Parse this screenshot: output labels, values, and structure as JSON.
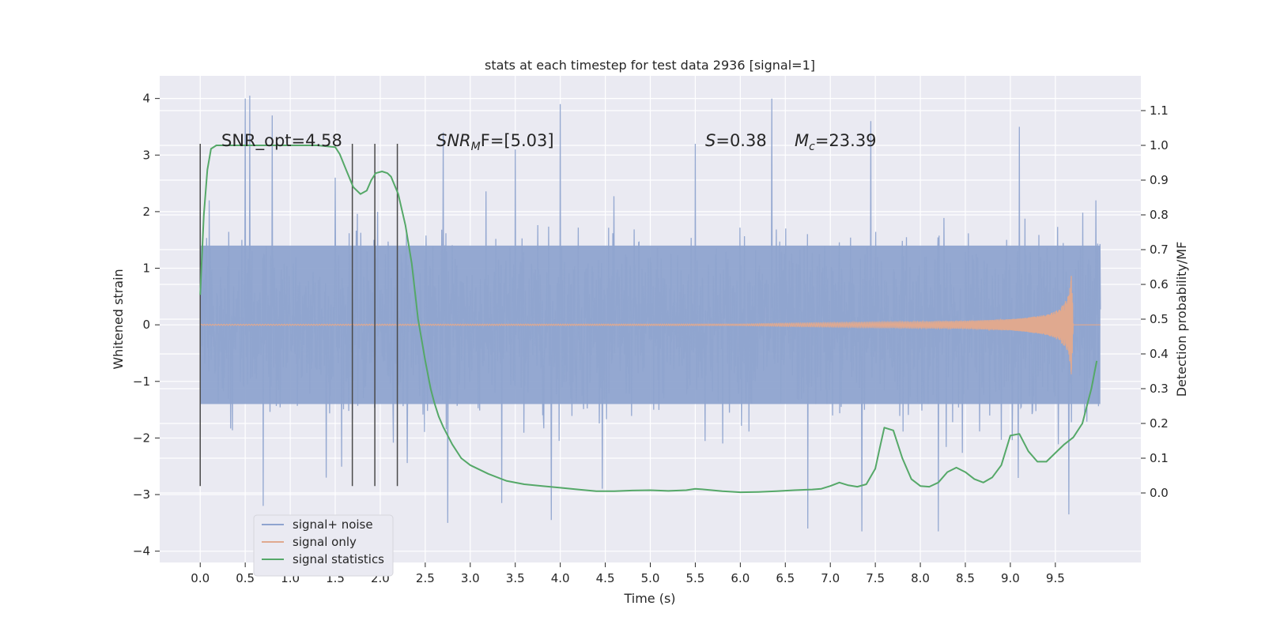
{
  "chart_data": {
    "type": "line",
    "title": "stats at each timestep for test data 2936 [signal=1]",
    "xlabel": "Time (s)",
    "ylabel_left": "Whitened strain",
    "ylabel_right": "Detection probability/MF",
    "xlim": [
      -0.45,
      10.45
    ],
    "ylim_left": [
      -4.2,
      4.4
    ],
    "ylim_right": [
      -0.2,
      1.2
    ],
    "grid": true,
    "legend_position": "lower-left",
    "x_ticks": [
      0.0,
      0.5,
      1.0,
      1.5,
      2.0,
      2.5,
      3.0,
      3.5,
      4.0,
      4.5,
      5.0,
      5.5,
      6.0,
      6.5,
      7.0,
      7.5,
      8.0,
      8.5,
      9.0,
      9.5
    ],
    "x_tick_labels": [
      "0.0",
      "0.5",
      "1.0",
      "1.5",
      "2.0",
      "2.5",
      "3.0",
      "3.5",
      "4.0",
      "4.5",
      "5.0",
      "5.5",
      "6.0",
      "6.5",
      "7.0",
      "7.5",
      "8.0",
      "8.5",
      "9.0",
      "9.5"
    ],
    "y_left_ticks": [
      4,
      3,
      2,
      1,
      0,
      -1,
      -2,
      -3,
      -4
    ],
    "y_left_tick_labels": [
      "4",
      "3",
      "2",
      "1",
      "0",
      "−1",
      "−2",
      "−3",
      "−4"
    ],
    "y_right_ticks": [
      1.1,
      1.0,
      0.9,
      0.8,
      0.7,
      0.6,
      0.5,
      0.4,
      0.3,
      0.2,
      0.1,
      0.0
    ],
    "y_right_tick_labels": [
      "1.1",
      "1.0",
      "0.9",
      "0.8",
      "0.7",
      "0.6",
      "0.5",
      "0.4",
      "0.3",
      "0.2",
      "0.1",
      "0.0"
    ],
    "annotations": {
      "snr_opt": "SNR_opt=4.58",
      "snr_mf_main": "SNR",
      "snr_mf_sub": "M",
      "snr_mf_rest": "F=[5.03]",
      "s_symbol": "S",
      "s_value": "=0.38",
      "mc_symbol": "M",
      "mc_sub": "c",
      "mc_value": "=23.39"
    },
    "vertical_markers": [
      {
        "x": 0.0,
        "y0": -2.85,
        "y1": 3.2
      },
      {
        "x": 1.69,
        "y0": -2.85,
        "y1": 3.2
      },
      {
        "x": 1.94,
        "y0": -2.85,
        "y1": 3.2
      },
      {
        "x": 2.19,
        "y0": -2.85,
        "y1": 3.2
      }
    ],
    "series": [
      {
        "name": "signal+ noise",
        "color": "#8fa4cf",
        "axis": "left",
        "x_range": [
          0.0,
          10.0
        ],
        "core_band": [
          -1.4,
          1.4
        ],
        "upper_envelope_approx": [
          [
            0.1,
            2.2
          ],
          [
            0.5,
            4.0
          ],
          [
            0.55,
            4.05
          ],
          [
            0.8,
            3.7
          ],
          [
            1.5,
            2.6
          ],
          [
            2.7,
            3.4
          ],
          [
            3.5,
            3.1
          ],
          [
            4.0,
            3.9
          ],
          [
            5.5,
            3.2
          ],
          [
            6.35,
            4.0
          ],
          [
            7.45,
            3.6
          ],
          [
            9.1,
            3.5
          ],
          [
            9.95,
            2.2
          ]
        ],
        "lower_envelope_approx": [
          [
            0.7,
            -3.2
          ],
          [
            1.4,
            -2.7
          ],
          [
            2.75,
            -3.5
          ],
          [
            3.35,
            -3.15
          ],
          [
            3.9,
            -3.45
          ],
          [
            6.75,
            -3.6
          ],
          [
            7.35,
            -3.65
          ],
          [
            8.2,
            -3.65
          ],
          [
            9.65,
            -3.35
          ]
        ]
      },
      {
        "name": "signal only",
        "color": "#e0a98f",
        "axis": "left",
        "x": [
          0.0,
          6.0,
          6.5,
          7.0,
          7.5,
          8.0,
          8.5,
          9.0,
          9.2,
          9.4,
          9.5,
          9.6,
          9.65,
          9.68,
          9.7,
          10.0
        ],
        "amplitude": [
          0.01,
          0.015,
          0.03,
          0.04,
          0.05,
          0.06,
          0.07,
          0.1,
          0.13,
          0.18,
          0.24,
          0.38,
          0.55,
          0.95,
          0.0,
          0.0
        ]
      },
      {
        "name": "signal statistics",
        "color": "#55a868",
        "axis": "right",
        "x": [
          0.0,
          0.04,
          0.08,
          0.12,
          0.18,
          0.25,
          0.35,
          0.5,
          0.8,
          1.1,
          1.3,
          1.5,
          1.55,
          1.62,
          1.7,
          1.78,
          1.85,
          1.9,
          1.95,
          2.02,
          2.08,
          2.12,
          2.2,
          2.28,
          2.35,
          2.42,
          2.5,
          2.56,
          2.6,
          2.65,
          2.7,
          2.8,
          2.9,
          3.0,
          3.2,
          3.4,
          3.6,
          3.8,
          4.0,
          4.2,
          4.4,
          4.6,
          4.8,
          5.0,
          5.2,
          5.4,
          5.5,
          5.6,
          5.8,
          6.0,
          6.2,
          6.4,
          6.6,
          6.8,
          6.9,
          7.0,
          7.1,
          7.2,
          7.3,
          7.4,
          7.5,
          7.55,
          7.6,
          7.7,
          7.8,
          7.9,
          8.0,
          8.1,
          8.2,
          8.3,
          8.4,
          8.5,
          8.6,
          8.7,
          8.8,
          8.9,
          9.0,
          9.1,
          9.2,
          9.3,
          9.4,
          9.5,
          9.6,
          9.7,
          9.8,
          9.9,
          9.96
        ],
        "y": [
          0.57,
          0.8,
          0.93,
          0.99,
          1.0,
          1.0,
          1.0,
          1.0,
          1.0,
          1.0,
          1.0,
          0.995,
          0.975,
          0.93,
          0.88,
          0.86,
          0.87,
          0.9,
          0.92,
          0.925,
          0.92,
          0.91,
          0.86,
          0.77,
          0.66,
          0.5,
          0.38,
          0.3,
          0.26,
          0.22,
          0.19,
          0.14,
          0.1,
          0.08,
          0.055,
          0.035,
          0.025,
          0.02,
          0.015,
          0.01,
          0.005,
          0.005,
          0.007,
          0.008,
          0.006,
          0.008,
          0.012,
          0.01,
          0.005,
          0.002,
          0.003,
          0.005,
          0.008,
          0.01,
          0.012,
          0.02,
          0.03,
          0.022,
          0.018,
          0.025,
          0.07,
          0.13,
          0.188,
          0.18,
          0.1,
          0.04,
          0.02,
          0.018,
          0.03,
          0.06,
          0.073,
          0.06,
          0.04,
          0.03,
          0.045,
          0.08,
          0.165,
          0.17,
          0.12,
          0.09,
          0.09,
          0.115,
          0.14,
          0.16,
          0.2,
          0.3,
          0.38
        ]
      }
    ]
  }
}
